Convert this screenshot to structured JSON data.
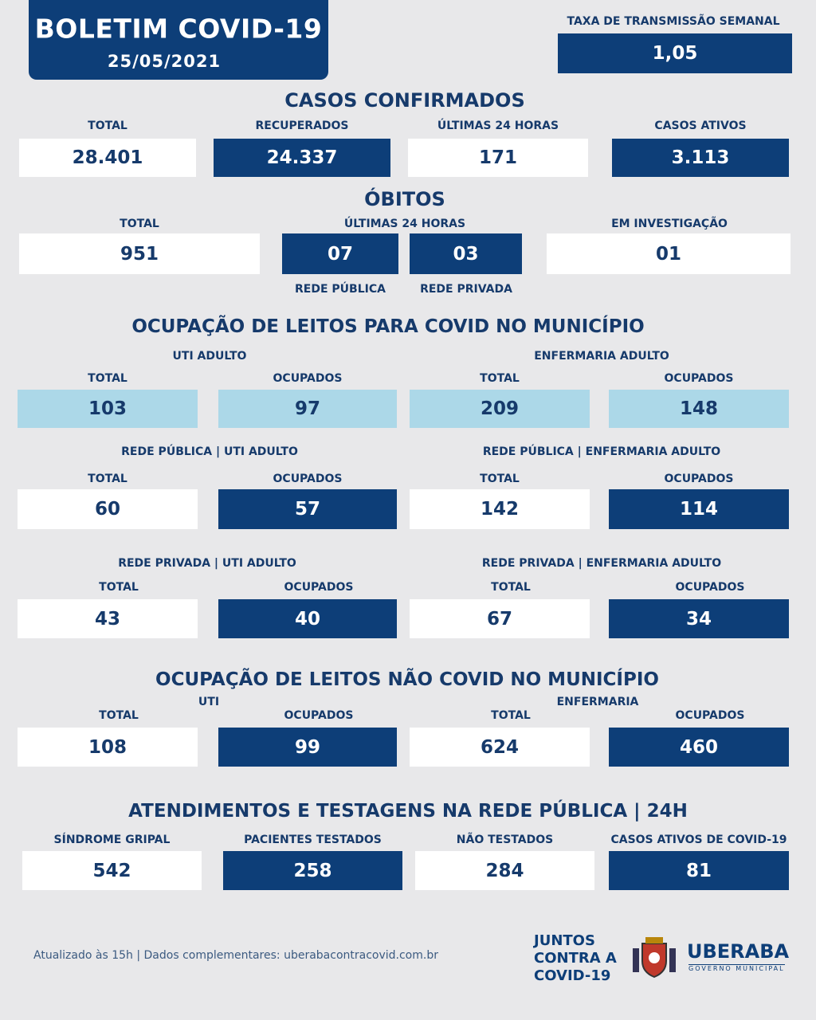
{
  "header": {
    "title": "BOLETIM COVID-19",
    "date": "25/05/2021"
  },
  "transmission": {
    "label": "TAXA DE TRANSMISSÃO SEMANAL",
    "value": "1,05"
  },
  "confirmed": {
    "title": "CASOS CONFIRMADOS",
    "items": [
      {
        "label": "TOTAL",
        "value": "28.401"
      },
      {
        "label": "RECUPERADOS",
        "value": "24.337"
      },
      {
        "label": "ÚLTIMAS 24 HORAS",
        "value": "171"
      },
      {
        "label": "CASOS ATIVOS",
        "value": "3.113"
      }
    ]
  },
  "deaths": {
    "title": "ÓBITOS",
    "total": {
      "label": "TOTAL",
      "value": "951"
    },
    "last24": {
      "label": "ÚLTIMAS 24 HORAS",
      "public": {
        "value": "07",
        "label": "REDE PÚBLICA"
      },
      "private": {
        "value": "03",
        "label": "REDE PRIVADA"
      }
    },
    "investigation": {
      "label": "EM INVESTIGAÇÃO",
      "value": "01"
    }
  },
  "covid_beds": {
    "title": "OCUPAÇÃO DE LEITOS PARA COVID NO MUNICÍPIO",
    "groups": [
      {
        "title": "UTI ADULTO",
        "items": [
          {
            "label": "TOTAL",
            "value": "103"
          },
          {
            "label": "OCUPADOS",
            "value": "97"
          }
        ]
      },
      {
        "title": "ENFERMARIA ADULTO",
        "items": [
          {
            "label": "TOTAL",
            "value": "209"
          },
          {
            "label": "OCUPADOS",
            "value": "148"
          }
        ]
      },
      {
        "title": "REDE PÚBLICA | UTI ADULTO",
        "items": [
          {
            "label": "TOTAL",
            "value": "60"
          },
          {
            "label": "OCUPADOS",
            "value": "57"
          }
        ]
      },
      {
        "title": "REDE PÚBLICA | ENFERMARIA ADULTO",
        "items": [
          {
            "label": "TOTAL",
            "value": "142"
          },
          {
            "label": "OCUPADOS",
            "value": "114"
          }
        ]
      },
      {
        "title": "REDE PRIVADA | UTI ADULTO",
        "items": [
          {
            "label": "TOTAL",
            "value": "43"
          },
          {
            "label": "OCUPADOS",
            "value": "40"
          }
        ]
      },
      {
        "title": "REDE PRIVADA | ENFERMARIA ADULTO",
        "items": [
          {
            "label": "TOTAL",
            "value": "67"
          },
          {
            "label": "OCUPADOS",
            "value": "34"
          }
        ]
      }
    ]
  },
  "non_covid_beds": {
    "title": "OCUPAÇÃO DE LEITOS NÃO COVID NO MUNICÍPIO",
    "groups": [
      {
        "title": "UTI",
        "items": [
          {
            "label": "TOTAL",
            "value": "108"
          },
          {
            "label": "OCUPADOS",
            "value": "99"
          }
        ]
      },
      {
        "title": "ENFERMARIA",
        "items": [
          {
            "label": "TOTAL",
            "value": "624"
          },
          {
            "label": "OCUPADOS",
            "value": "460"
          }
        ]
      }
    ]
  },
  "attendance": {
    "title": "ATENDIMENTOS E TESTAGENS NA REDE PÚBLICA | 24H",
    "items": [
      {
        "label": "SÍNDROME GRIPAL",
        "value": "542"
      },
      {
        "label": "PACIENTES TESTADOS",
        "value": "258"
      },
      {
        "label": "NÃO TESTADOS",
        "value": "284"
      },
      {
        "label": "CASOS ATIVOS DE COVID-19",
        "value": "81"
      }
    ]
  },
  "footer": {
    "note": "Atualizado às 15h | Dados complementares: uberabacontracovid.com.br",
    "campaign": [
      "JUNTOS",
      "CONTRA A",
      "COVID-19"
    ],
    "city": "UBERABA",
    "government": "GOVERNO MUNICIPAL"
  }
}
